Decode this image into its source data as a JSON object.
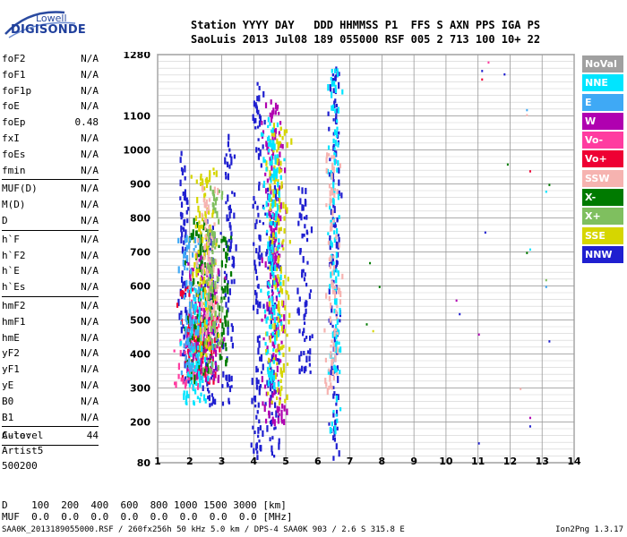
{
  "logo": {
    "top": "Lowell",
    "main": "DIGISONDE"
  },
  "header": {
    "line1": "Station YYYY DAY   DDD HHMMSS P1  FFS S AXN PPS IGA PS",
    "line2": "SaoLuis 2013 Jul08 189 055000 RSF 005 2 713 100 10+ 22"
  },
  "params": [
    {
      "group": [
        {
          "name": "foF2",
          "value": "N/A"
        },
        {
          "name": "foF1",
          "value": "N/A"
        },
        {
          "name": "foF1p",
          "value": "N/A"
        },
        {
          "name": "foE",
          "value": "N/A"
        },
        {
          "name": "foEp",
          "value": "0.48"
        },
        {
          "name": "fxI",
          "value": "N/A"
        },
        {
          "name": "foEs",
          "value": "N/A"
        },
        {
          "name": "fmin",
          "value": "N/A"
        }
      ]
    },
    {
      "group": [
        {
          "name": "MUF(D)",
          "value": "N/A"
        },
        {
          "name": "M(D)",
          "value": "N/A"
        },
        {
          "name": "D",
          "value": "N/A"
        }
      ]
    },
    {
      "group": [
        {
          "name": "h`F",
          "value": "N/A"
        },
        {
          "name": "h`F2",
          "value": "N/A"
        },
        {
          "name": "h`E",
          "value": "N/A"
        },
        {
          "name": "h`Es",
          "value": "N/A"
        }
      ]
    },
    {
      "group": [
        {
          "name": "hmF2",
          "value": "N/A"
        },
        {
          "name": "hmF1",
          "value": "N/A"
        },
        {
          "name": "hmE",
          "value": "N/A"
        },
        {
          "name": "yF2",
          "value": "N/A"
        },
        {
          "name": "yF1",
          "value": "N/A"
        },
        {
          "name": "yE",
          "value": "N/A"
        },
        {
          "name": "B0",
          "value": "N/A"
        },
        {
          "name": "B1",
          "value": "N/A"
        }
      ]
    },
    {
      "group": [
        {
          "name": "C-level",
          "value": "44"
        }
      ]
    }
  ],
  "auto": [
    "Auto:",
    "Artist5",
    "500200"
  ],
  "legend": [
    {
      "label": "NoVal",
      "color": "#a0a0a0"
    },
    {
      "label": "NNE",
      "color": "#00e5ff"
    },
    {
      "label": "E",
      "color": "#3fa9f5"
    },
    {
      "label": "W",
      "color": "#b000b0"
    },
    {
      "label": "Vo-",
      "color": "#ff3ca0"
    },
    {
      "label": "Vo+",
      "color": "#ee0033"
    },
    {
      "label": "SSW",
      "color": "#f6b3b0"
    },
    {
      "label": "X-",
      "color": "#007a00"
    },
    {
      "label": "X+",
      "color": "#7fbf5f"
    },
    {
      "label": "SSE",
      "color": "#d6d600"
    },
    {
      "label": "NNW",
      "color": "#1f1fd0"
    }
  ],
  "chart_data": {
    "type": "scatter",
    "title": "",
    "xlabel": "",
    "ylabel": "",
    "xlim": [
      1,
      14
    ],
    "ylim": [
      80,
      1280
    ],
    "x_ticks": [
      1,
      2,
      3,
      4,
      5,
      6,
      7,
      8,
      9,
      10,
      11,
      12,
      13,
      14
    ],
    "y_ticks": [
      80,
      200,
      300,
      400,
      500,
      600,
      700,
      800,
      900,
      1000,
      1100,
      1280
    ],
    "grid": true,
    "series": [
      {
        "color": "#1f1fd0",
        "clusters": [
          [
            1.8,
            1.6,
            2.0,
            320,
            1000
          ],
          [
            2.6,
            2.3,
            2.9,
            250,
            800
          ],
          [
            3.2,
            3.0,
            3.4,
            250,
            1050
          ],
          [
            4.1,
            3.9,
            4.3,
            100,
            1200
          ],
          [
            4.6,
            4.3,
            4.8,
            100,
            900
          ],
          [
            5.5,
            5.3,
            5.8,
            350,
            900
          ],
          [
            6.5,
            6.3,
            6.7,
            100,
            1250
          ]
        ]
      },
      {
        "color": "#ee0033",
        "clusters": [
          [
            2.2,
            1.6,
            2.9,
            320,
            600
          ],
          [
            2.5,
            2.0,
            2.9,
            350,
            500
          ]
        ]
      },
      {
        "color": "#ff3ca0",
        "clusters": [
          [
            2.0,
            1.5,
            2.8,
            310,
            480
          ],
          [
            2.4,
            2.0,
            2.9,
            420,
            560
          ]
        ]
      },
      {
        "color": "#007a00",
        "clusters": [
          [
            2.3,
            1.8,
            2.8,
            320,
            800
          ],
          [
            3.0,
            2.8,
            3.3,
            380,
            750
          ]
        ]
      },
      {
        "color": "#b000b0",
        "clusters": [
          [
            2.4,
            1.8,
            3.0,
            330,
            700
          ],
          [
            4.6,
            4.2,
            5.0,
            200,
            1150
          ]
        ]
      },
      {
        "color": "#d6d600",
        "clusters": [
          [
            2.5,
            2.0,
            2.9,
            400,
            950
          ],
          [
            4.8,
            4.4,
            5.1,
            250,
            1100
          ]
        ]
      },
      {
        "color": "#00e5ff",
        "clusters": [
          [
            2.2,
            1.7,
            2.7,
            250,
            600
          ],
          [
            4.5,
            4.2,
            4.9,
            300,
            1100
          ],
          [
            6.6,
            6.3,
            6.7,
            180,
            1250
          ]
        ]
      },
      {
        "color": "#3fa9f5",
        "clusters": [
          [
            1.9,
            1.6,
            2.3,
            350,
            750
          ]
        ]
      },
      {
        "color": "#f6b3b0",
        "clusters": [
          [
            2.6,
            2.2,
            2.9,
            450,
            900
          ],
          [
            6.5,
            6.2,
            6.7,
            300,
            1000
          ]
        ]
      },
      {
        "color": "#7fbf5f",
        "clusters": [
          [
            2.7,
            2.4,
            3.0,
            350,
            900
          ]
        ]
      }
    ],
    "sparse_points": [
      [
        7.6,
        670,
        "#007a00"
      ],
      [
        7.9,
        600,
        "#007a00"
      ],
      [
        7.5,
        490,
        "#007a00"
      ],
      [
        7.7,
        470,
        "#d6d600"
      ],
      [
        10.3,
        560,
        "#b000b0"
      ],
      [
        10.4,
        520,
        "#1f1fd0"
      ],
      [
        11.0,
        460,
        "#b000b0"
      ],
      [
        11.0,
        140,
        "#1f1fd0"
      ],
      [
        11.1,
        1235,
        "#1f1fd0"
      ],
      [
        11.1,
        1210,
        "#ee0033"
      ],
      [
        11.3,
        1260,
        "#ff3ca0"
      ],
      [
        11.8,
        1225,
        "#1f1fd0"
      ],
      [
        11.2,
        760,
        "#1f1fd0"
      ],
      [
        11.9,
        960,
        "#007a00"
      ],
      [
        12.5,
        1120,
        "#3fa9f5"
      ],
      [
        12.5,
        1105,
        "#f6b3b0"
      ],
      [
        12.6,
        940,
        "#ee0033"
      ],
      [
        12.5,
        700,
        "#007a00"
      ],
      [
        12.6,
        710,
        "#00e5ff"
      ],
      [
        12.6,
        215,
        "#b000b0"
      ],
      [
        12.6,
        190,
        "#1f1fd0"
      ],
      [
        13.1,
        620,
        "#7fbf5f"
      ],
      [
        13.1,
        600,
        "#3fa9f5"
      ],
      [
        13.2,
        900,
        "#007a00"
      ],
      [
        13.1,
        880,
        "#00e5ff"
      ],
      [
        13.2,
        440,
        "#1f1fd0"
      ],
      [
        12.3,
        300,
        "#f6b3b0"
      ]
    ]
  },
  "bottom": {
    "line1": "D    100  200  400  600  800 1000 1500 3000 [km]",
    "line2": "MUF  0.0  0.0  0.0  0.0  0.0  0.0  0.0  0.0 [MHz]"
  },
  "footer": "SAA0K_2013189055000.RSF / 260fx256h 50 kHz 5.0 km / DPS-4 SAA0K 903 / 2.6 S 315.8 E",
  "footer_right": "Ion2Png 1.3.17"
}
